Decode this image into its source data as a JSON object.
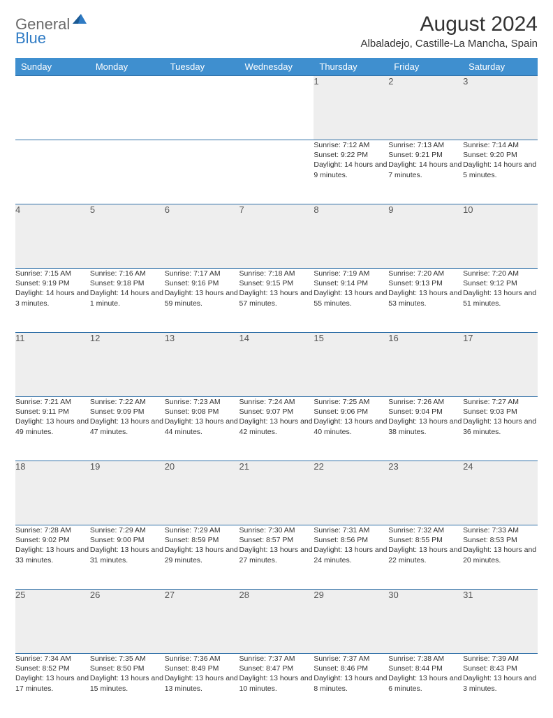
{
  "logo": {
    "text_gray": "General",
    "text_blue": "Blue"
  },
  "title": "August 2024",
  "location": "Albaladejo, Castille-La Mancha, Spain",
  "colors": {
    "header_bg": "#3f8fcf",
    "header_text": "#ffffff",
    "row_divider": "#2e6ea6",
    "daynum_bg": "#eeeeee",
    "logo_gray": "#6a6a6a",
    "logo_blue": "#2f7bc4",
    "body_text": "#333333"
  },
  "day_headers": [
    "Sunday",
    "Monday",
    "Tuesday",
    "Wednesday",
    "Thursday",
    "Friday",
    "Saturday"
  ],
  "weeks": [
    {
      "nums": [
        "",
        "",
        "",
        "",
        "1",
        "2",
        "3"
      ],
      "cells": [
        null,
        null,
        null,
        null,
        {
          "sunrise": "7:12 AM",
          "sunset": "9:22 PM",
          "daylight": "14 hours and 9 minutes."
        },
        {
          "sunrise": "7:13 AM",
          "sunset": "9:21 PM",
          "daylight": "14 hours and 7 minutes."
        },
        {
          "sunrise": "7:14 AM",
          "sunset": "9:20 PM",
          "daylight": "14 hours and 5 minutes."
        }
      ]
    },
    {
      "nums": [
        "4",
        "5",
        "6",
        "7",
        "8",
        "9",
        "10"
      ],
      "cells": [
        {
          "sunrise": "7:15 AM",
          "sunset": "9:19 PM",
          "daylight": "14 hours and 3 minutes."
        },
        {
          "sunrise": "7:16 AM",
          "sunset": "9:18 PM",
          "daylight": "14 hours and 1 minute."
        },
        {
          "sunrise": "7:17 AM",
          "sunset": "9:16 PM",
          "daylight": "13 hours and 59 minutes."
        },
        {
          "sunrise": "7:18 AM",
          "sunset": "9:15 PM",
          "daylight": "13 hours and 57 minutes."
        },
        {
          "sunrise": "7:19 AM",
          "sunset": "9:14 PM",
          "daylight": "13 hours and 55 minutes."
        },
        {
          "sunrise": "7:20 AM",
          "sunset": "9:13 PM",
          "daylight": "13 hours and 53 minutes."
        },
        {
          "sunrise": "7:20 AM",
          "sunset": "9:12 PM",
          "daylight": "13 hours and 51 minutes."
        }
      ]
    },
    {
      "nums": [
        "11",
        "12",
        "13",
        "14",
        "15",
        "16",
        "17"
      ],
      "cells": [
        {
          "sunrise": "7:21 AM",
          "sunset": "9:11 PM",
          "daylight": "13 hours and 49 minutes."
        },
        {
          "sunrise": "7:22 AM",
          "sunset": "9:09 PM",
          "daylight": "13 hours and 47 minutes."
        },
        {
          "sunrise": "7:23 AM",
          "sunset": "9:08 PM",
          "daylight": "13 hours and 44 minutes."
        },
        {
          "sunrise": "7:24 AM",
          "sunset": "9:07 PM",
          "daylight": "13 hours and 42 minutes."
        },
        {
          "sunrise": "7:25 AM",
          "sunset": "9:06 PM",
          "daylight": "13 hours and 40 minutes."
        },
        {
          "sunrise": "7:26 AM",
          "sunset": "9:04 PM",
          "daylight": "13 hours and 38 minutes."
        },
        {
          "sunrise": "7:27 AM",
          "sunset": "9:03 PM",
          "daylight": "13 hours and 36 minutes."
        }
      ]
    },
    {
      "nums": [
        "18",
        "19",
        "20",
        "21",
        "22",
        "23",
        "24"
      ],
      "cells": [
        {
          "sunrise": "7:28 AM",
          "sunset": "9:02 PM",
          "daylight": "13 hours and 33 minutes."
        },
        {
          "sunrise": "7:29 AM",
          "sunset": "9:00 PM",
          "daylight": "13 hours and 31 minutes."
        },
        {
          "sunrise": "7:29 AM",
          "sunset": "8:59 PM",
          "daylight": "13 hours and 29 minutes."
        },
        {
          "sunrise": "7:30 AM",
          "sunset": "8:57 PM",
          "daylight": "13 hours and 27 minutes."
        },
        {
          "sunrise": "7:31 AM",
          "sunset": "8:56 PM",
          "daylight": "13 hours and 24 minutes."
        },
        {
          "sunrise": "7:32 AM",
          "sunset": "8:55 PM",
          "daylight": "13 hours and 22 minutes."
        },
        {
          "sunrise": "7:33 AM",
          "sunset": "8:53 PM",
          "daylight": "13 hours and 20 minutes."
        }
      ]
    },
    {
      "nums": [
        "25",
        "26",
        "27",
        "28",
        "29",
        "30",
        "31"
      ],
      "cells": [
        {
          "sunrise": "7:34 AM",
          "sunset": "8:52 PM",
          "daylight": "13 hours and 17 minutes."
        },
        {
          "sunrise": "7:35 AM",
          "sunset": "8:50 PM",
          "daylight": "13 hours and 15 minutes."
        },
        {
          "sunrise": "7:36 AM",
          "sunset": "8:49 PM",
          "daylight": "13 hours and 13 minutes."
        },
        {
          "sunrise": "7:37 AM",
          "sunset": "8:47 PM",
          "daylight": "13 hours and 10 minutes."
        },
        {
          "sunrise": "7:37 AM",
          "sunset": "8:46 PM",
          "daylight": "13 hours and 8 minutes."
        },
        {
          "sunrise": "7:38 AM",
          "sunset": "8:44 PM",
          "daylight": "13 hours and 6 minutes."
        },
        {
          "sunrise": "7:39 AM",
          "sunset": "8:43 PM",
          "daylight": "13 hours and 3 minutes."
        }
      ]
    }
  ],
  "labels": {
    "sunrise_prefix": "Sunrise: ",
    "sunset_prefix": "Sunset: ",
    "daylight_prefix": "Daylight: "
  }
}
